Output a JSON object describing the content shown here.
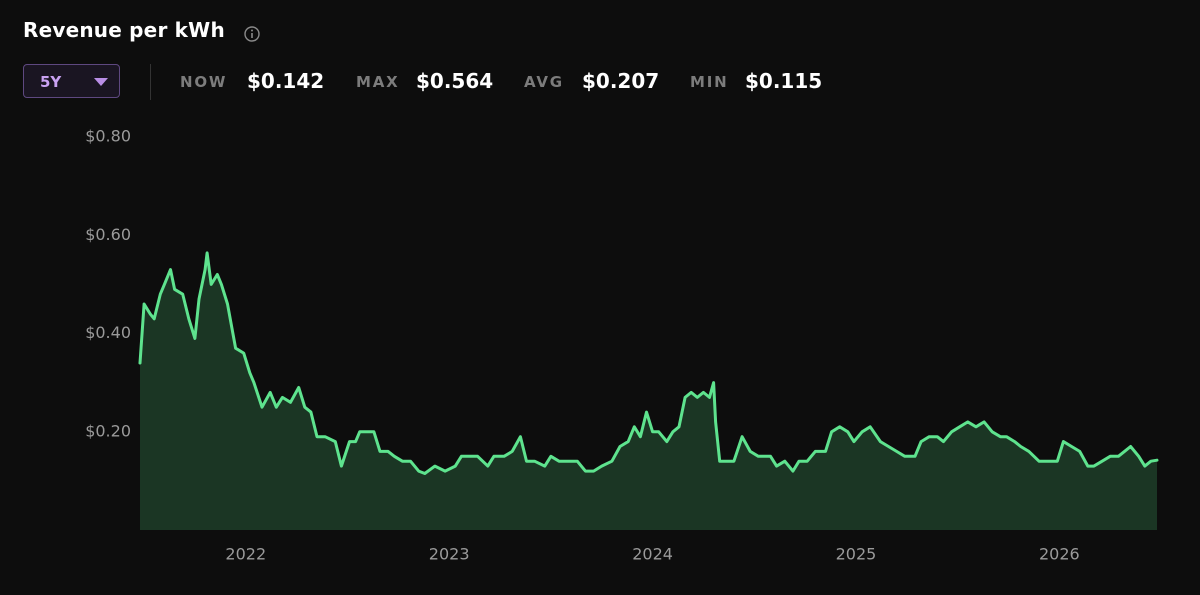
{
  "header": {
    "title": "Revenue per kWh",
    "range": "5Y",
    "stats": [
      {
        "label": "NOW",
        "value": "$0.142"
      },
      {
        "label": "MAX",
        "value": "$0.564"
      },
      {
        "label": "AVG",
        "value": "$0.207"
      },
      {
        "label": "MIN",
        "value": "$0.115"
      }
    ]
  },
  "chart_data": {
    "type": "area",
    "xlim": [
      2021.48,
      2026.48
    ],
    "xticks": [
      2022,
      2023,
      2024,
      2025,
      2026
    ],
    "ylim": [
      0,
      0.8
    ],
    "yticks": [
      {
        "value": 0.2,
        "label": "$0.20"
      },
      {
        "value": 0.4,
        "label": "$0.40"
      },
      {
        "value": 0.6,
        "label": "$0.60"
      },
      {
        "value": 0.8,
        "label": "$0.80"
      }
    ],
    "grid": false,
    "series": [
      {
        "color": "#5ee38e",
        "fill_color": "#1b3624",
        "x": [
          2021.48,
          2021.5,
          2021.53,
          2021.55,
          2021.58,
          2021.6,
          2021.63,
          2021.65,
          2021.69,
          2021.72,
          2021.75,
          2021.77,
          2021.8,
          2021.81,
          2021.83,
          2021.86,
          2021.88,
          2021.91,
          2021.95,
          2021.99,
          2022.02,
          2022.04,
          2022.08,
          2022.12,
          2022.15,
          2022.18,
          2022.22,
          2022.26,
          2022.29,
          2022.32,
          2022.35,
          2022.39,
          2022.44,
          2022.47,
          2022.51,
          2022.54,
          2022.56,
          2022.6,
          2022.63,
          2022.66,
          2022.7,
          2022.73,
          2022.77,
          2022.81,
          2022.85,
          2022.88,
          2022.93,
          2022.98,
          2023.03,
          2023.06,
          2023.1,
          2023.14,
          2023.19,
          2023.22,
          2023.27,
          2023.31,
          2023.35,
          2023.38,
          2023.42,
          2023.47,
          2023.5,
          2023.54,
          2023.59,
          2023.63,
          2023.67,
          2023.71,
          2023.75,
          2023.8,
          2023.84,
          2023.88,
          2023.91,
          2023.94,
          2023.97,
          2024.0,
          2024.03,
          2024.07,
          2024.1,
          2024.13,
          2024.16,
          2024.19,
          2024.22,
          2024.25,
          2024.28,
          2024.3,
          2024.31,
          2024.33,
          2024.37,
          2024.4,
          2024.44,
          2024.48,
          2024.52,
          2024.55,
          2024.58,
          2024.61,
          2024.65,
          2024.69,
          2024.72,
          2024.76,
          2024.8,
          2024.85,
          2024.88,
          2024.92,
          2024.96,
          2024.99,
          2025.03,
          2025.07,
          2025.12,
          2025.16,
          2025.2,
          2025.24,
          2025.29,
          2025.32,
          2025.36,
          2025.4,
          2025.43,
          2025.47,
          2025.51,
          2025.55,
          2025.59,
          2025.63,
          2025.67,
          2025.71,
          2025.74,
          2025.78,
          2025.81,
          2025.85,
          2025.9,
          2025.95,
          2025.99,
          2026.02,
          2026.06,
          2026.1,
          2026.14,
          2026.17,
          2026.21,
          2026.25,
          2026.29,
          2026.32,
          2026.35,
          2026.39,
          2026.42,
          2026.45,
          2026.48
        ],
        "values": [
          0.34,
          0.46,
          0.44,
          0.43,
          0.48,
          0.5,
          0.53,
          0.49,
          0.48,
          0.43,
          0.39,
          0.47,
          0.53,
          0.564,
          0.5,
          0.52,
          0.5,
          0.46,
          0.37,
          0.36,
          0.32,
          0.3,
          0.25,
          0.28,
          0.25,
          0.27,
          0.26,
          0.29,
          0.25,
          0.24,
          0.19,
          0.19,
          0.18,
          0.13,
          0.18,
          0.18,
          0.2,
          0.2,
          0.2,
          0.16,
          0.16,
          0.15,
          0.14,
          0.14,
          0.12,
          0.115,
          0.13,
          0.12,
          0.13,
          0.15,
          0.15,
          0.15,
          0.13,
          0.15,
          0.15,
          0.16,
          0.19,
          0.14,
          0.14,
          0.13,
          0.15,
          0.14,
          0.14,
          0.14,
          0.12,
          0.12,
          0.13,
          0.14,
          0.17,
          0.18,
          0.21,
          0.19,
          0.24,
          0.2,
          0.2,
          0.18,
          0.2,
          0.21,
          0.27,
          0.28,
          0.27,
          0.28,
          0.27,
          0.3,
          0.22,
          0.14,
          0.14,
          0.14,
          0.19,
          0.16,
          0.15,
          0.15,
          0.15,
          0.13,
          0.14,
          0.12,
          0.14,
          0.14,
          0.16,
          0.16,
          0.2,
          0.21,
          0.2,
          0.18,
          0.2,
          0.21,
          0.18,
          0.17,
          0.16,
          0.15,
          0.15,
          0.18,
          0.19,
          0.19,
          0.18,
          0.2,
          0.21,
          0.22,
          0.21,
          0.22,
          0.2,
          0.19,
          0.19,
          0.18,
          0.17,
          0.16,
          0.14,
          0.14,
          0.14,
          0.18,
          0.17,
          0.16,
          0.13,
          0.13,
          0.14,
          0.15,
          0.15,
          0.16,
          0.17,
          0.15,
          0.13,
          0.14,
          0.142
        ]
      }
    ]
  }
}
